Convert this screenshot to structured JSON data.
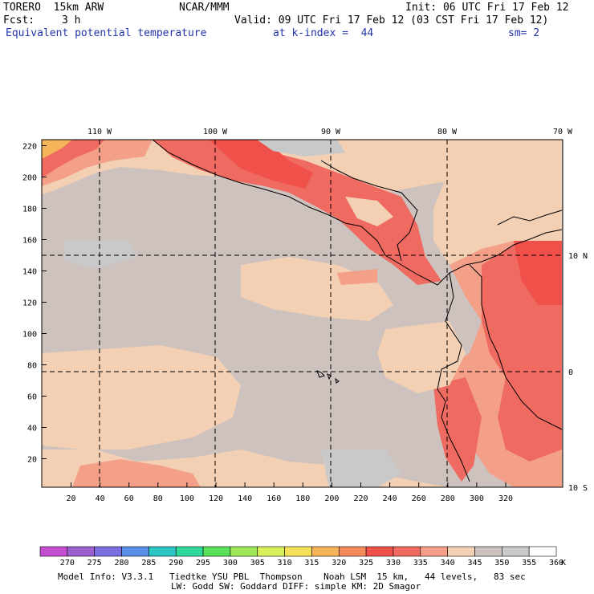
{
  "header": {
    "model": "TORERO  15km ARW",
    "org": "NCAR/MMM",
    "init": "Init: 06 UTC Fri 17 Feb 12",
    "fcst_label": "Fcst:",
    "fcst_hours": "3 h",
    "valid": "Valid: 09 UTC Fri 17 Feb 12 (03 CST Fri 17 Feb 12)",
    "field": "Equivalent potential temperature",
    "level": "at k-index =  44",
    "smooth": "sm= 2"
  },
  "map": {
    "lon_labels": [
      "110 W",
      "100 W",
      "90 W",
      "80 W",
      "70 W"
    ],
    "lat_labels": [
      "10 N",
      "0",
      "10 S"
    ],
    "x_ticks": [
      "20",
      "40",
      "60",
      "80",
      "100",
      "120",
      "140",
      "160",
      "180",
      "200",
      "220",
      "240",
      "260",
      "280",
      "300",
      "320"
    ],
    "y_ticks": [
      "220",
      "200",
      "180",
      "160",
      "140",
      "120",
      "100",
      "80",
      "60",
      "40",
      "20"
    ]
  },
  "colorbar": {
    "levels": [
      "270",
      "275",
      "280",
      "285",
      "290",
      "295",
      "300",
      "305",
      "310",
      "315",
      "320",
      "325",
      "330",
      "335",
      "340",
      "345",
      "350",
      "355",
      "360"
    ],
    "unit": "K",
    "colors": [
      "#c34fd0",
      "#9b5fd0",
      "#7b6ee0",
      "#5a8ee6",
      "#2ec4c4",
      "#2ed89a",
      "#5ae05a",
      "#9ee85a",
      "#d8ee5a",
      "#f5e05a",
      "#f5b35a",
      "#f58a5a",
      "#f0504a",
      "#ef6a60",
      "#f4a088",
      "#f3cfb4",
      "#cdc2bd",
      "#c9c9c9",
      "#ffffff"
    ]
  },
  "footer": {
    "line1": "Model Info: V3.3.1   Tiedtke YSU PBL  Thompson    Noah LSM  15 km,   44 levels,   83 sec",
    "line2": "LW: Godd SW: Goddard DIFF: simple KM: 2D Smagor"
  }
}
